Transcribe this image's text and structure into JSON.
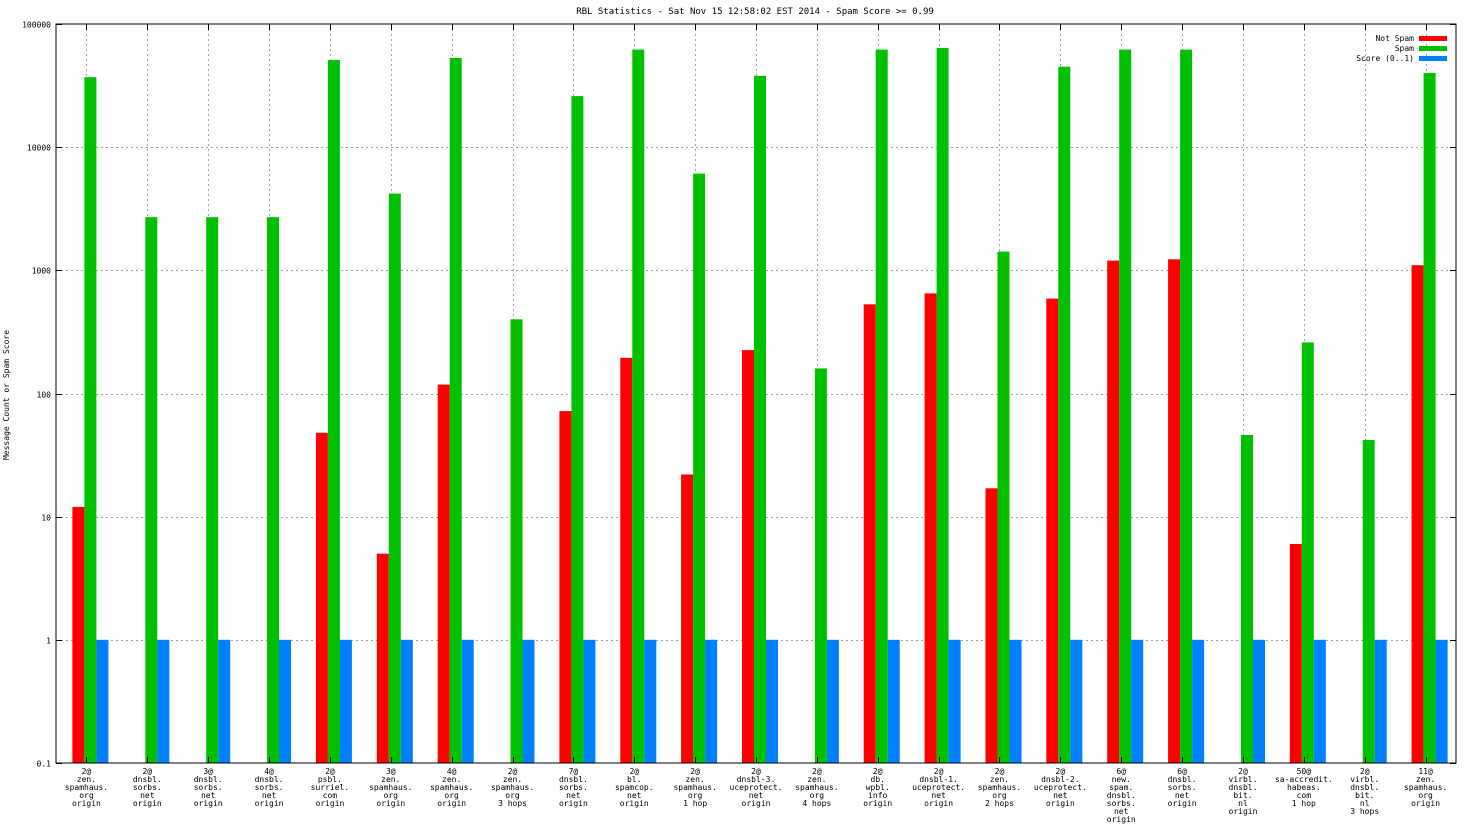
{
  "chart_data": {
    "type": "bar",
    "title": "RBL Statistics - Sat Nov 15 12:58:02 EST 2014 - Spam Score >= 0.99",
    "ylabel": "Message Count or Spam Score",
    "xlabel": "",
    "yscale": "log",
    "ylim": [
      0.1,
      100000
    ],
    "yticks": [
      "100000",
      "10000",
      "1000",
      "100",
      "10",
      "1",
      "0.1"
    ],
    "grid": true,
    "legend_position": "top-right",
    "categories": [
      [
        "2@",
        "zen.",
        "spamhaus.",
        "org",
        "origin"
      ],
      [
        "2@",
        "dnsbl.",
        "sorbs.",
        "net",
        "origin"
      ],
      [
        "3@",
        "dnsbl.",
        "sorbs.",
        "net",
        "origin"
      ],
      [
        "4@",
        "dnsbl.",
        "sorbs.",
        "net",
        "origin"
      ],
      [
        "2@",
        "psbl.",
        "surriel.",
        "com",
        "origin"
      ],
      [
        "3@",
        "zen.",
        "spamhaus.",
        "org",
        "origin"
      ],
      [
        "4@",
        "zen.",
        "spamhaus.",
        "org",
        "origin"
      ],
      [
        "2@",
        "zen.",
        "spamhaus.",
        "org",
        "3 hops"
      ],
      [
        "7@",
        "dnsbl.",
        "sorbs.",
        "net",
        "origin"
      ],
      [
        "2@",
        "bl.",
        "spamcop.",
        "net",
        "origin"
      ],
      [
        "2@",
        "zen.",
        "spamhaus.",
        "org",
        "1 hop"
      ],
      [
        "2@",
        "dnsbl-3.",
        "uceprotect.",
        "net",
        "origin"
      ],
      [
        "2@",
        "zen.",
        "spamhaus.",
        "org",
        "4 hops"
      ],
      [
        "2@",
        "db.",
        "wpbl.",
        "info",
        "origin"
      ],
      [
        "2@",
        "dnsbl-1.",
        "uceprotect.",
        "net",
        "origin"
      ],
      [
        "2@",
        "zen.",
        "spamhaus.",
        "org",
        "2 hops"
      ],
      [
        "2@",
        "dnsbl-2.",
        "uceprotect.",
        "net",
        "origin"
      ],
      [
        "6@",
        "new.",
        "spam.",
        "dnsbl.",
        "sorbs.",
        "net",
        "origin"
      ],
      [
        "6@",
        "dnsbl.",
        "sorbs.",
        "net",
        "origin"
      ],
      [
        "2@",
        "virbl.",
        "dnsbl.",
        "bit.",
        "nl",
        "origin"
      ],
      [
        "50@",
        "sa-accredit.",
        "habeas.",
        "com",
        "1 hop"
      ],
      [
        "2@",
        "virbl.",
        "dnsbl.",
        "bit.",
        "nl",
        "3 hops"
      ],
      [
        "11@",
        "zen.",
        "spamhaus.",
        "org",
        "origin"
      ]
    ],
    "series": [
      {
        "name": "Not Spam",
        "color": "#ff0000",
        "values": [
          12,
          null,
          null,
          null,
          48,
          5,
          118,
          null,
          72,
          195,
          22,
          225,
          null,
          530,
          650,
          17,
          590,
          1200,
          1230,
          null,
          6,
          null,
          1100
        ]
      },
      {
        "name": "Spam",
        "color": "#00c000",
        "values": [
          37000,
          2700,
          2700,
          2700,
          51000,
          4200,
          53000,
          400,
          26000,
          62000,
          6100,
          38000,
          160,
          62000,
          64000,
          1420,
          45000,
          62000,
          62000,
          46,
          260,
          42,
          40000
        ]
      },
      {
        "name": "Score (0..1)",
        "color": "#0080ff",
        "values": [
          1,
          1,
          1,
          1,
          1,
          1,
          1,
          1,
          1,
          1,
          1,
          1,
          1,
          1,
          1,
          1,
          1,
          1,
          1,
          1,
          1,
          1,
          1
        ]
      }
    ]
  }
}
